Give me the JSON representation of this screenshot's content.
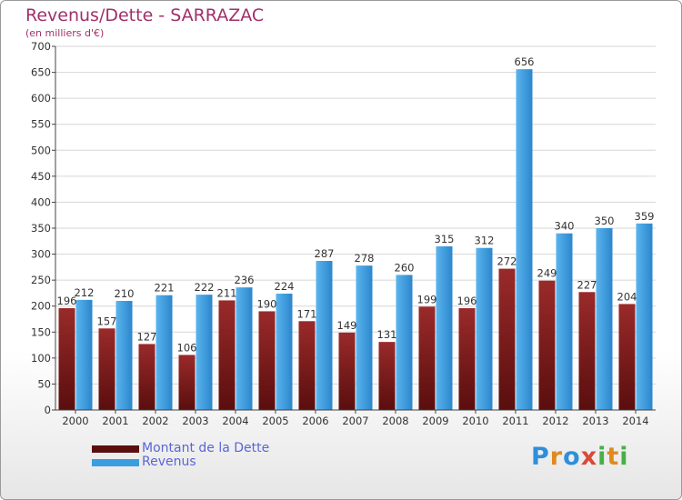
{
  "title": "Revenus/Dette - SARRAZAC",
  "subtitle": "(en milliers d'€)",
  "legend": {
    "items": [
      {
        "label": "Montant de la Dette",
        "color": "#7a1a1a"
      },
      {
        "label": "Revenus",
        "color": "#3a9ee0"
      }
    ]
  },
  "logo": {
    "text": "Proxiti"
  },
  "chart_data": {
    "type": "bar",
    "categories": [
      "2000",
      "2001",
      "2002",
      "2003",
      "2004",
      "2005",
      "2006",
      "2007",
      "2008",
      "2009",
      "2010",
      "2011",
      "2012",
      "2013",
      "2014"
    ],
    "series": [
      {
        "name": "Montant de la Dette",
        "values": [
          196,
          157,
          127,
          106,
          211,
          190,
          171,
          149,
          131,
          199,
          196,
          272,
          249,
          227,
          204
        ],
        "color": "#7a1a1a"
      },
      {
        "name": "Revenus",
        "values": [
          212,
          210,
          221,
          222,
          236,
          224,
          287,
          278,
          260,
          315,
          312,
          656,
          340,
          350,
          359
        ],
        "color": "#3a9ee0"
      }
    ],
    "ylim": [
      0,
      700
    ],
    "yticks": [
      0,
      50,
      100,
      150,
      200,
      250,
      300,
      350,
      400,
      450,
      500,
      550,
      600,
      650,
      700
    ],
    "grid": true,
    "legend_position": "bottom-left"
  }
}
